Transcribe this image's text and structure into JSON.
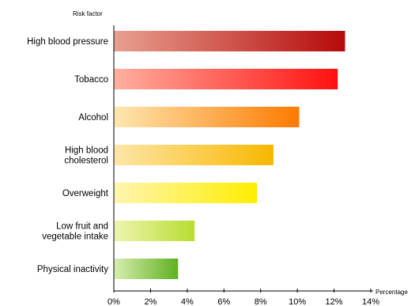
{
  "chart_data": {
    "type": "bar",
    "orientation": "horizontal",
    "ylabel": "Risk factor",
    "xlabel": "Percentage",
    "categories": [
      [
        "High blood pressure"
      ],
      [
        "Tobacco"
      ],
      [
        "Alcohol"
      ],
      [
        "High blood",
        "cholesterol"
      ],
      [
        "Overweight"
      ],
      [
        "Low fruit and",
        "vegetable intake"
      ],
      [
        "Physical inactivity"
      ]
    ],
    "values": [
      12.6,
      12.2,
      10.1,
      8.7,
      7.8,
      4.4,
      3.5
    ],
    "xlim": [
      0,
      14
    ],
    "xticks": [
      0,
      2,
      4,
      6,
      8,
      10,
      12,
      14
    ],
    "xtick_labels": [
      "0%",
      "2%",
      "4%",
      "6%",
      "8%",
      "10%",
      "12%",
      "14%"
    ],
    "grid": false,
    "colors": [
      [
        "#e8a090",
        "#b50a0a"
      ],
      [
        "#ffb0a0",
        "#ff1010"
      ],
      [
        "#fde7b0",
        "#ff7a00"
      ],
      [
        "#fde6a8",
        "#f8b800"
      ],
      [
        "#fff5b0",
        "#ffee00"
      ],
      [
        "#eef5b0",
        "#b8dd30"
      ],
      [
        "#d8eeb0",
        "#60b020"
      ]
    ]
  }
}
